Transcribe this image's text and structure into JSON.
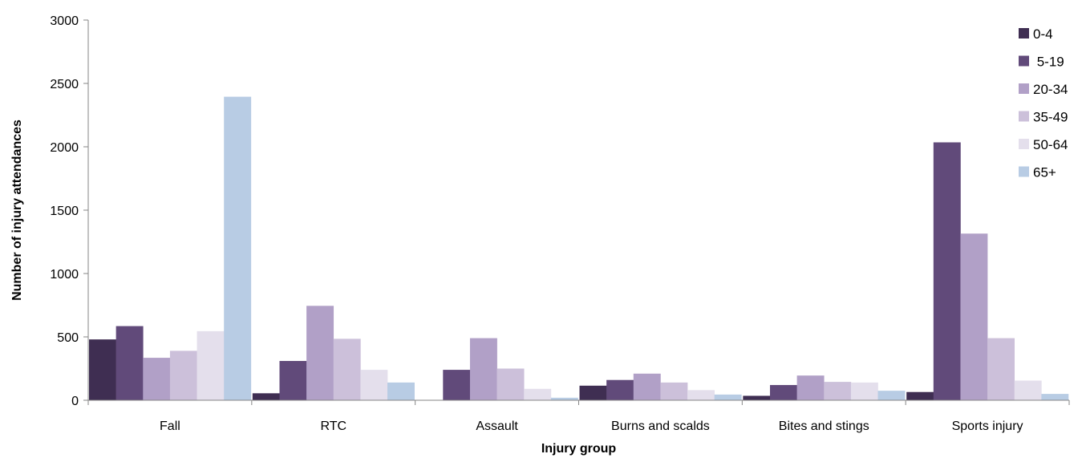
{
  "chart_data": {
    "type": "bar",
    "xlabel": "Injury group",
    "ylabel": "Number of injury attendances",
    "ylim": [
      0,
      3000
    ],
    "yticks": [
      0,
      500,
      1000,
      1500,
      2000,
      2500,
      3000
    ],
    "grid": false,
    "legend_position": "right",
    "categories": [
      "Fall",
      "RTC",
      "Assault",
      "Burns and scalds",
      "Bites and stings",
      "Sports injury"
    ],
    "series": [
      {
        "name": "0-4",
        "color": "#3f2e52",
        "values": [
          480,
          55,
          0,
          115,
          35,
          65
        ]
      },
      {
        "name": " 5-19",
        "color": "#614a7a",
        "values": [
          585,
          310,
          240,
          160,
          120,
          2035
        ]
      },
      {
        "name": "20-34",
        "color": "#b1a0c7",
        "values": [
          335,
          745,
          490,
          210,
          195,
          1315
        ]
      },
      {
        "name": "35-49",
        "color": "#ccc0da",
        "values": [
          390,
          485,
          250,
          140,
          145,
          490
        ]
      },
      {
        "name": "50-64",
        "color": "#e4dfec",
        "values": [
          545,
          240,
          90,
          80,
          140,
          155
        ]
      },
      {
        "name": "65+",
        "color": "#b8cce4",
        "values": [
          2395,
          140,
          20,
          45,
          75,
          50
        ]
      }
    ]
  }
}
